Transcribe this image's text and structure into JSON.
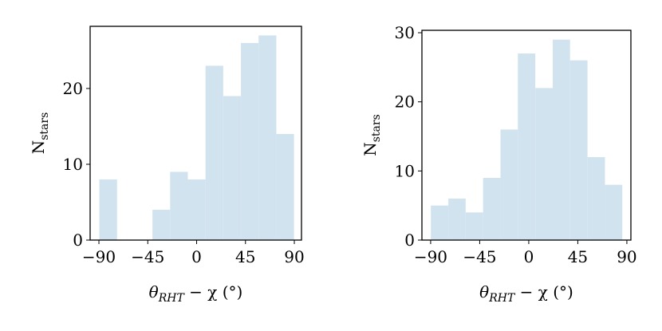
{
  "chart_data": [
    {
      "type": "histogram",
      "bins": [
        -89.6,
        -73.3,
        -57.0,
        -40.7,
        -24.4,
        -8.1,
        8.2,
        24.5,
        40.8,
        57.1,
        73.4,
        89.7
      ],
      "values": [
        8,
        0,
        0,
        4,
        9,
        8,
        23,
        19,
        26,
        27,
        14
      ],
      "color": "#d2e3f0",
      "xlim": [
        -98.1,
        96.6
      ],
      "xticks": [
        {
          "value": -90,
          "label": "−90"
        },
        {
          "value": -45,
          "label": "−45"
        },
        0,
        45,
        90
      ],
      "ylim": [
        0,
        28.2
      ],
      "yticks": [
        0,
        10,
        20
      ],
      "xlabel": {
        "main": "θ",
        "sub": "RHT",
        "rest": " − χ (°)"
      },
      "ylabel": {
        "main": "N",
        "sub": "stars"
      }
    },
    {
      "type": "histogram",
      "bins": [
        -89.8,
        -73.8,
        -57.9,
        -41.9,
        -25.9,
        -10.0,
        6.0,
        22.0,
        37.9,
        53.9,
        69.9,
        85.8
      ],
      "values": [
        5,
        6,
        4,
        9,
        16,
        27,
        22,
        29,
        26,
        12,
        8
      ],
      "color": "#d2e3f0",
      "xlim": [
        -98,
        93.7
      ],
      "xticks": [
        {
          "value": -90,
          "label": "−90"
        },
        {
          "value": -45,
          "label": "−45"
        },
        0,
        45,
        90
      ],
      "ylim": [
        0,
        30.35
      ],
      "yticks": [
        0,
        10,
        20,
        30
      ],
      "xlabel": {
        "main": "θ",
        "sub": "RHT",
        "rest": " − χ (°)"
      },
      "ylabel": {
        "main": "N",
        "sub": "stars"
      }
    }
  ]
}
